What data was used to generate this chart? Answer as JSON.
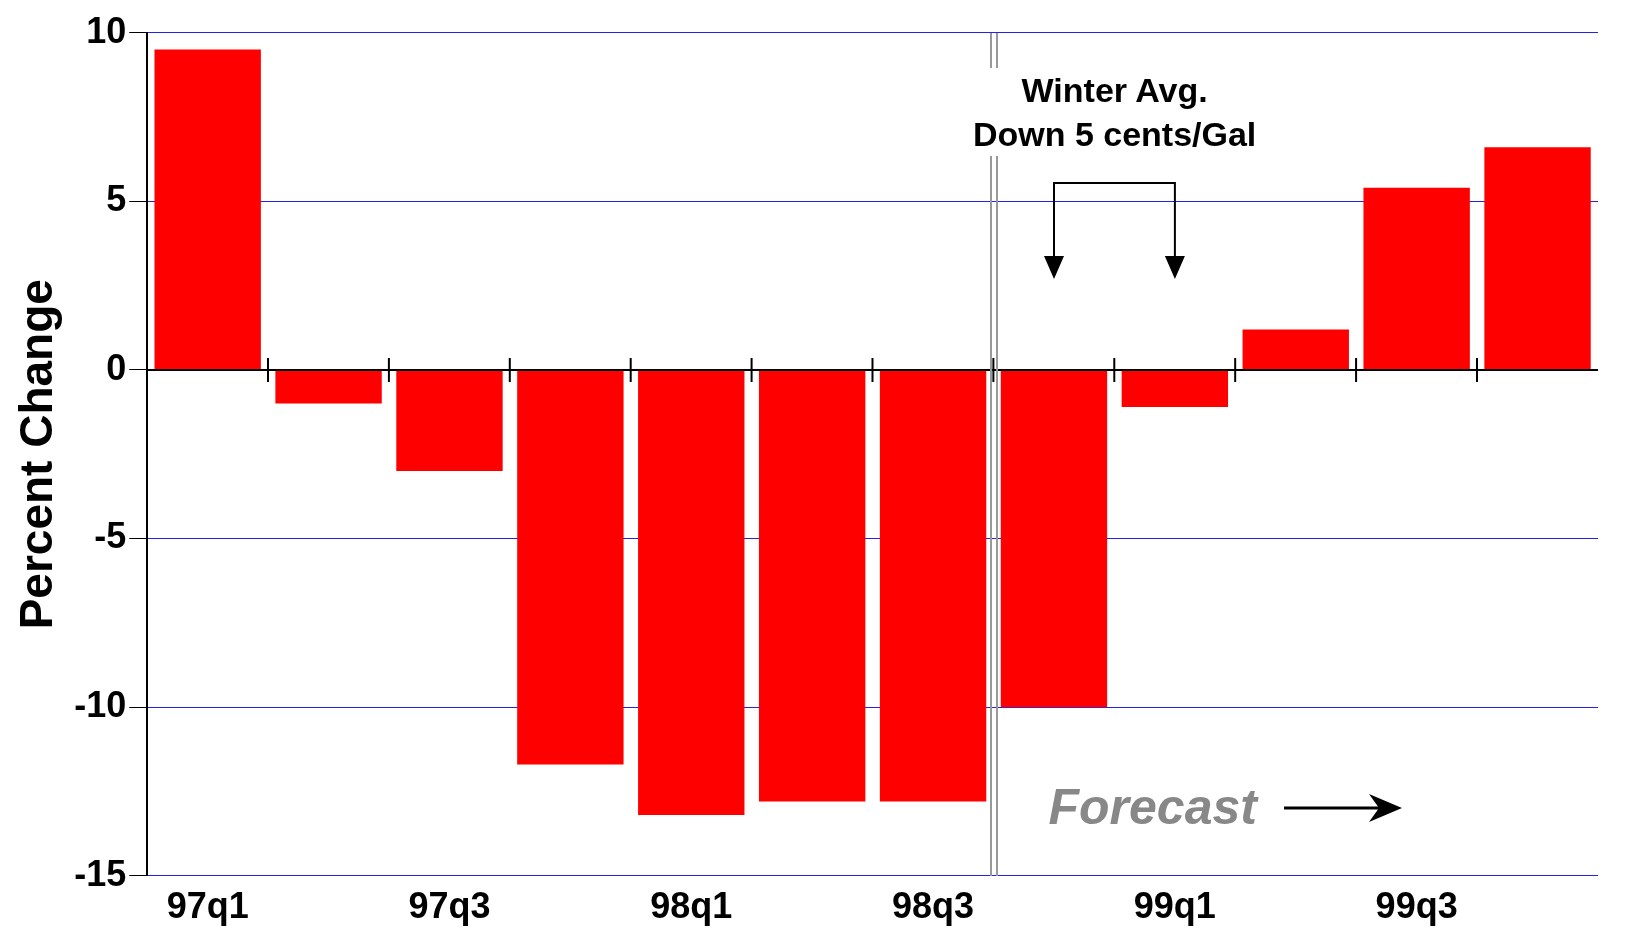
{
  "chart_data": {
    "type": "bar",
    "ylabel": "Percent Change",
    "categories": [
      "97q1",
      null,
      "97q3",
      null,
      "98q1",
      null,
      "98q3",
      null,
      "99q1",
      null,
      "99q3",
      null
    ],
    "values": [
      9.5,
      -1.0,
      -3.0,
      -11.7,
      -13.2,
      -12.8,
      -12.8,
      -10.0,
      -1.1,
      1.2,
      5.4,
      6.6
    ],
    "color": "#ff0000",
    "ylim": [
      -15,
      10
    ],
    "yticks": [
      -15,
      -10,
      -5,
      0,
      5,
      10
    ],
    "grid": "y",
    "legend": false,
    "annotations": [
      "Winter Avg.\nDown 5 cents/Gal",
      "Forecast"
    ]
  }
}
